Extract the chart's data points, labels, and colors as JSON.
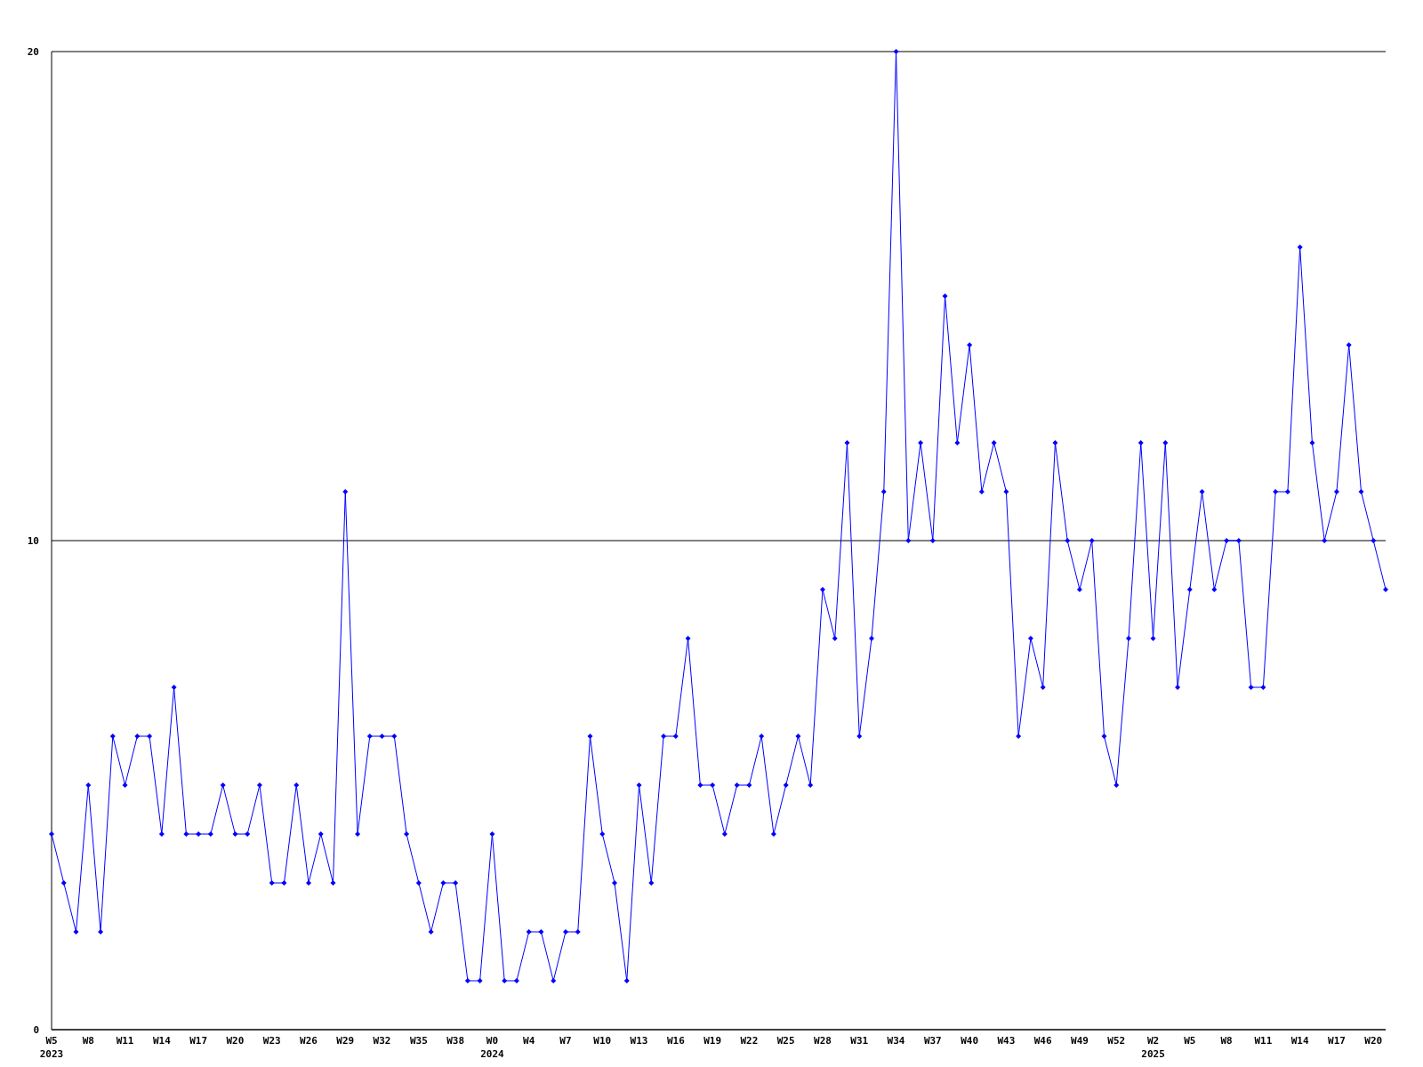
{
  "chart_data": {
    "type": "line",
    "categories": [
      "W5\n2023",
      null,
      null,
      "W8",
      null,
      null,
      "W11",
      null,
      null,
      "W14",
      null,
      null,
      "W17",
      null,
      null,
      "W20",
      null,
      null,
      "W23",
      null,
      null,
      "W26",
      null,
      null,
      "W29",
      null,
      null,
      "W32",
      null,
      null,
      "W35",
      null,
      null,
      "W38",
      null,
      null,
      "W0\n2024",
      null,
      null,
      "W4",
      null,
      null,
      "W7",
      null,
      null,
      "W10",
      null,
      null,
      "W13",
      null,
      null,
      "W16",
      null,
      null,
      "W19",
      null,
      null,
      "W22",
      null,
      null,
      "W25",
      null,
      null,
      "W28",
      null,
      null,
      "W31",
      null,
      null,
      "W34",
      null,
      null,
      "W37",
      null,
      null,
      "W40",
      null,
      null,
      "W43",
      null,
      null,
      "W46",
      null,
      null,
      "W49",
      null,
      null,
      "W52",
      null,
      null,
      "W2\n2025",
      null,
      null,
      "W5",
      null,
      null,
      "W8",
      null,
      null,
      "W11",
      null,
      null,
      "W14",
      null,
      null,
      "W17",
      null,
      null,
      "W20",
      null
    ],
    "series": [
      {
        "color": "#0000ff",
        "values": [
          4,
          3,
          2,
          5,
          2,
          6,
          5,
          6,
          6,
          4,
          7,
          4,
          4,
          4,
          5,
          4,
          4,
          5,
          3,
          3,
          5,
          3,
          4,
          3,
          11,
          4,
          6,
          6,
          6,
          4,
          3,
          2,
          3,
          3,
          1,
          1,
          4,
          1,
          1,
          2,
          2,
          1,
          2,
          2,
          6,
          4,
          3,
          1,
          5,
          3,
          6,
          6,
          8,
          5,
          5,
          4,
          5,
          5,
          6,
          4,
          5,
          6,
          5,
          9,
          8,
          12,
          6,
          8,
          11,
          20,
          10,
          12,
          10,
          15,
          12,
          14,
          11,
          12,
          11,
          6,
          8,
          7,
          12,
          10,
          9,
          10,
          6,
          5,
          8,
          12,
          8,
          12,
          7,
          9,
          11,
          9,
          10,
          10,
          7,
          7,
          11,
          11,
          16,
          12,
          10,
          11,
          14,
          11,
          10,
          9
        ]
      }
    ],
    "ylim": [
      0,
      20
    ],
    "yticks": [
      0,
      10,
      20
    ],
    "grid": "y",
    "marker": "diamond",
    "line_style": "solid"
  }
}
